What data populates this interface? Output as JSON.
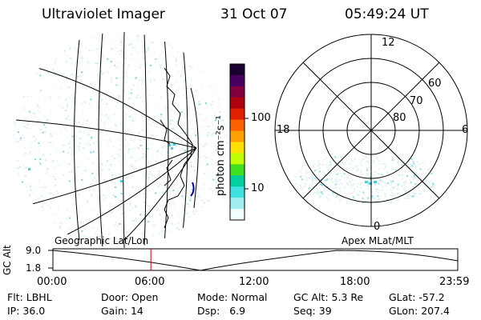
{
  "header": {
    "instrument": "Ultraviolet Imager",
    "date": "31 Oct 07",
    "time": "05:49:24 UT"
  },
  "colorbar": {
    "unit_label": "photon cm⁻²s⁻¹",
    "ticks": [
      "100",
      "10"
    ],
    "colors": [
      "#1a0030",
      "#4a0060",
      "#800040",
      "#b00010",
      "#e02000",
      "#ff6000",
      "#ffa000",
      "#ffe000",
      "#c0ff00",
      "#40e020",
      "#00d0a0",
      "#40e0e0",
      "#a0f0f0",
      "#f0ffff"
    ]
  },
  "polar_plot": {
    "mlt_labels": [
      "12",
      "18",
      "6",
      "0"
    ],
    "lat_labels": [
      "60",
      "70",
      "80"
    ]
  },
  "map_labels": {
    "geographic": "Geographic Lat/Lon",
    "apex": "Apex MLat/MLT"
  },
  "altitude_plot": {
    "axis_label": "GC Alt",
    "y_ticks": [
      "9.0",
      "1.8"
    ],
    "x_ticks": [
      "00:00",
      "06:00",
      "12:00",
      "18:00",
      "23:59"
    ],
    "current_time_fraction": 0.242
  },
  "status": {
    "row1": [
      {
        "label": "Flt:",
        "value": "LBHL"
      },
      {
        "label": "Door:",
        "value": "Open"
      },
      {
        "label": "Mode:",
        "value": "Normal"
      },
      {
        "label": "GC Alt:",
        "value": "5.3 Re"
      },
      {
        "label": "GLat:",
        "value": "-57.2"
      }
    ],
    "row2": [
      {
        "label": "IP:",
        "value": "36.0"
      },
      {
        "label": "Gain:",
        "value": "14"
      },
      {
        "label": "Dsp:",
        "value": "6.9"
      },
      {
        "label": "Seq:",
        "value": "39"
      },
      {
        "label": "GLon:",
        "value": "207.4"
      }
    ]
  }
}
